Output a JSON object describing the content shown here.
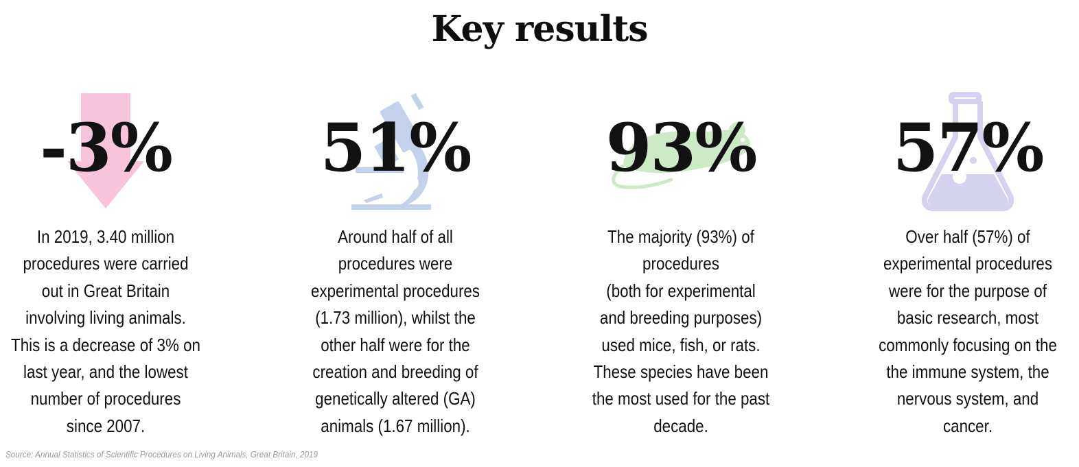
{
  "title": "Key results",
  "stats": [
    {
      "value": "-3%",
      "icon": "down-arrow-icon",
      "icon_color": "#f7c4dc",
      "description": "In 2019, 3.40 million\nprocedures were carried\nout in Great Britain\ninvolving living animals.\nThis is a decrease of 3% on\nlast year, and the lowest\nnumber of procedures\nsince 2007."
    },
    {
      "value": "51%",
      "icon": "microscope-icon",
      "icon_color": "#c3d1ea",
      "description": "Around half of all\nprocedures were\nexperimental procedures\n(1.73 million), whilst the\nother half were for the\ncreation and breeding of\ngenetically altered (GA)\nanimals (1.67 million)."
    },
    {
      "value": "93%",
      "icon": "mouse-icon",
      "icon_color": "#cdeac7",
      "description": "The majority (93%) of\nprocedures\n(both for experimental\nand breeding purposes)\nused mice, fish, or rats.\nThese species have been\nthe most used for the past\ndecade."
    },
    {
      "value": "57%",
      "icon": "flask-icon",
      "icon_color": "#d4d2ef",
      "description": "Over half (57%) of\nexperimental procedures\nwere for the purpose of\nbasic research, most\ncommonly focusing on the\nthe immune system, the\nnervous system, and\ncancer."
    }
  ],
  "source": "Source: Annual Statistics of Scientific Procedures on Living Animals, Great Britain, 2019"
}
